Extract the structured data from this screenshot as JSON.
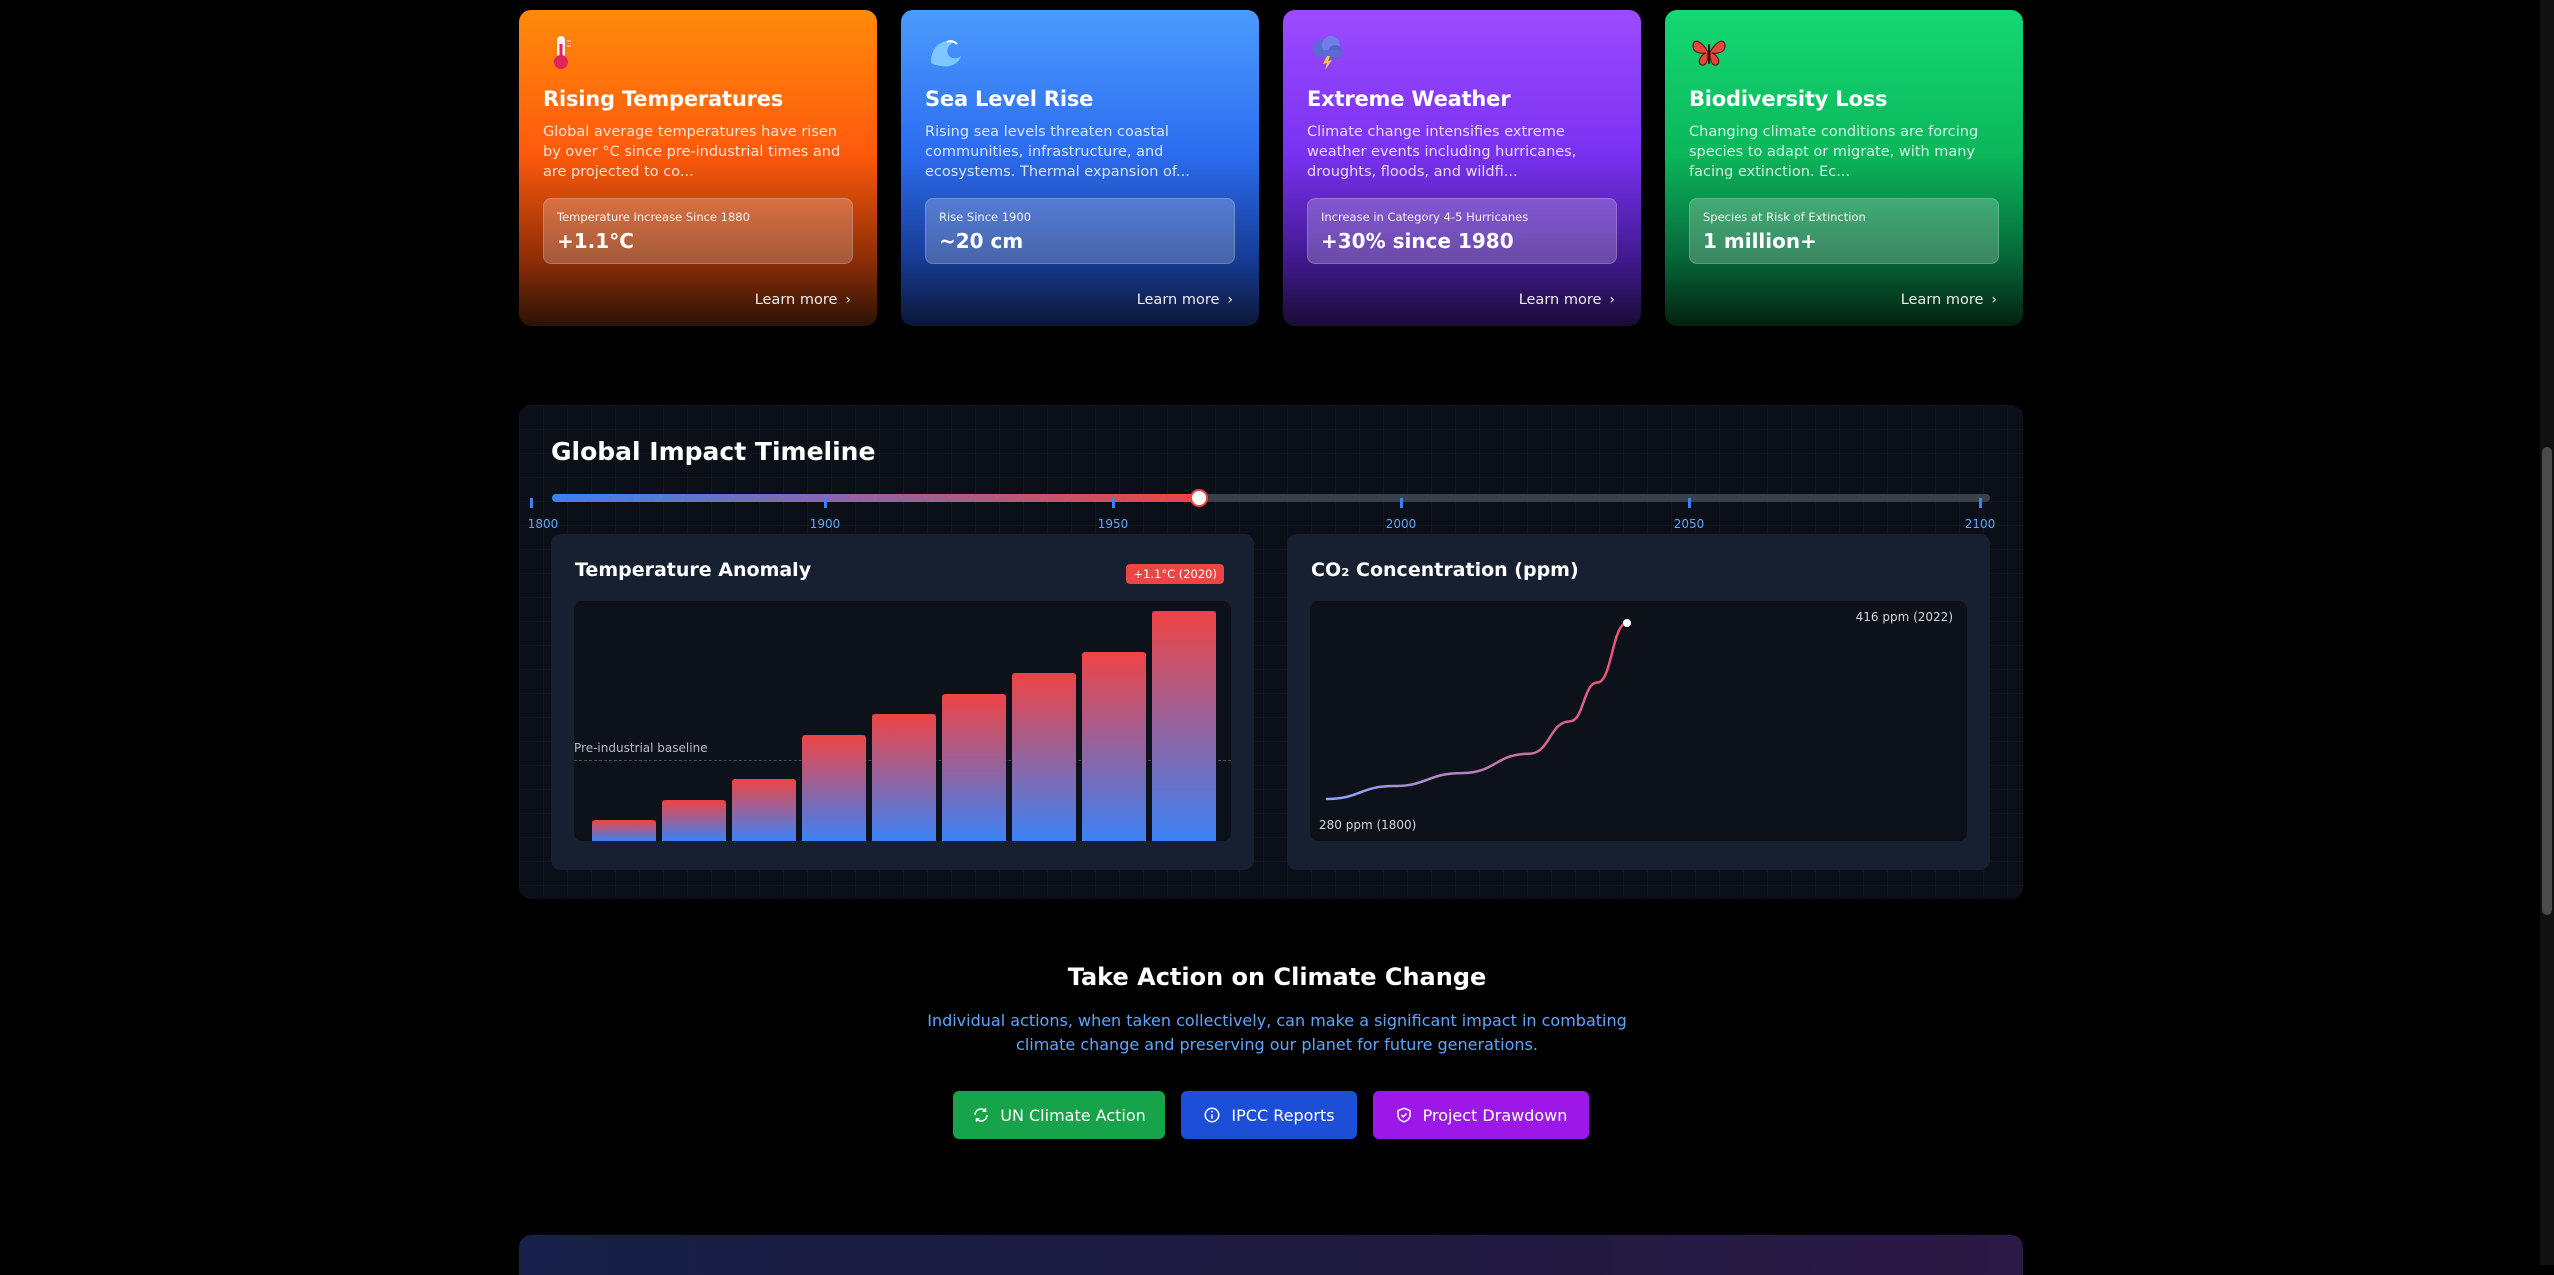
{
  "cards": [
    {
      "title": "Rising Temperatures",
      "desc": "Global average temperatures have risen by over °C since pre-industrial times and are projected to co...",
      "stat_label": "Temperature Increase Since 1880",
      "stat_value": "+1.1°C",
      "learn": "Learn more",
      "icon": "thermometer-icon"
    },
    {
      "title": "Sea Level Rise",
      "desc": "Rising sea levels threaten coastal communities, infrastructure, and ecosystems. Thermal expansion of...",
      "stat_label": "Rise Since 1900",
      "stat_value": "~20 cm",
      "learn": "Learn more",
      "icon": "wave-icon"
    },
    {
      "title": "Extreme Weather",
      "desc": "Climate change intensifies extreme weather events including hurricanes, droughts, floods, and wildfi...",
      "stat_label": "Increase in Category 4-5 Hurricanes",
      "stat_value": "+30% since 1980",
      "learn": "Learn more",
      "icon": "storm-cloud-icon"
    },
    {
      "title": "Biodiversity Loss",
      "desc": "Changing climate conditions are forcing species to adapt or migrate, with many facing extinction. Ec...",
      "stat_label": "Species at Risk of Extinction",
      "stat_value": "1 million+",
      "learn": "Learn more",
      "icon": "butterfly-icon"
    }
  ],
  "timeline": {
    "title": "Global Impact Timeline",
    "ticks": [
      "1800",
      "1900",
      "1950",
      "2000",
      "2050",
      "2100"
    ],
    "selected_fraction": 0.45
  },
  "temp_panel": {
    "title": "Temperature Anomaly",
    "badge": "+1.1°C (2020)",
    "baseline_label": "Pre-industrial baseline"
  },
  "co2_panel": {
    "title": "CO₂ Concentration (ppm)",
    "end_label": "416 ppm (2022)",
    "start_label": "280 ppm (1800)"
  },
  "chart_data": [
    {
      "type": "bar",
      "title": "Temperature Anomaly",
      "values": [
        0.09,
        0.18,
        0.27,
        0.46,
        0.55,
        0.64,
        0.73,
        0.82,
        1.0
      ],
      "ylim": [
        0,
        1
      ]
    },
    {
      "type": "line",
      "title": "CO₂ Concentration (ppm)",
      "x": [
        1800,
        1850,
        1900,
        1950,
        1980,
        2000,
        2022
      ],
      "values": [
        280,
        290,
        300,
        315,
        340,
        370,
        416
      ]
    }
  ],
  "action": {
    "title": "Take Action on Climate Change",
    "desc": "Individual actions, when taken collectively, can make a significant impact in combating climate change and preserving our planet for future generations.",
    "buttons": [
      "UN Climate Action",
      "IPCC Reports",
      "Project Drawdown"
    ]
  }
}
